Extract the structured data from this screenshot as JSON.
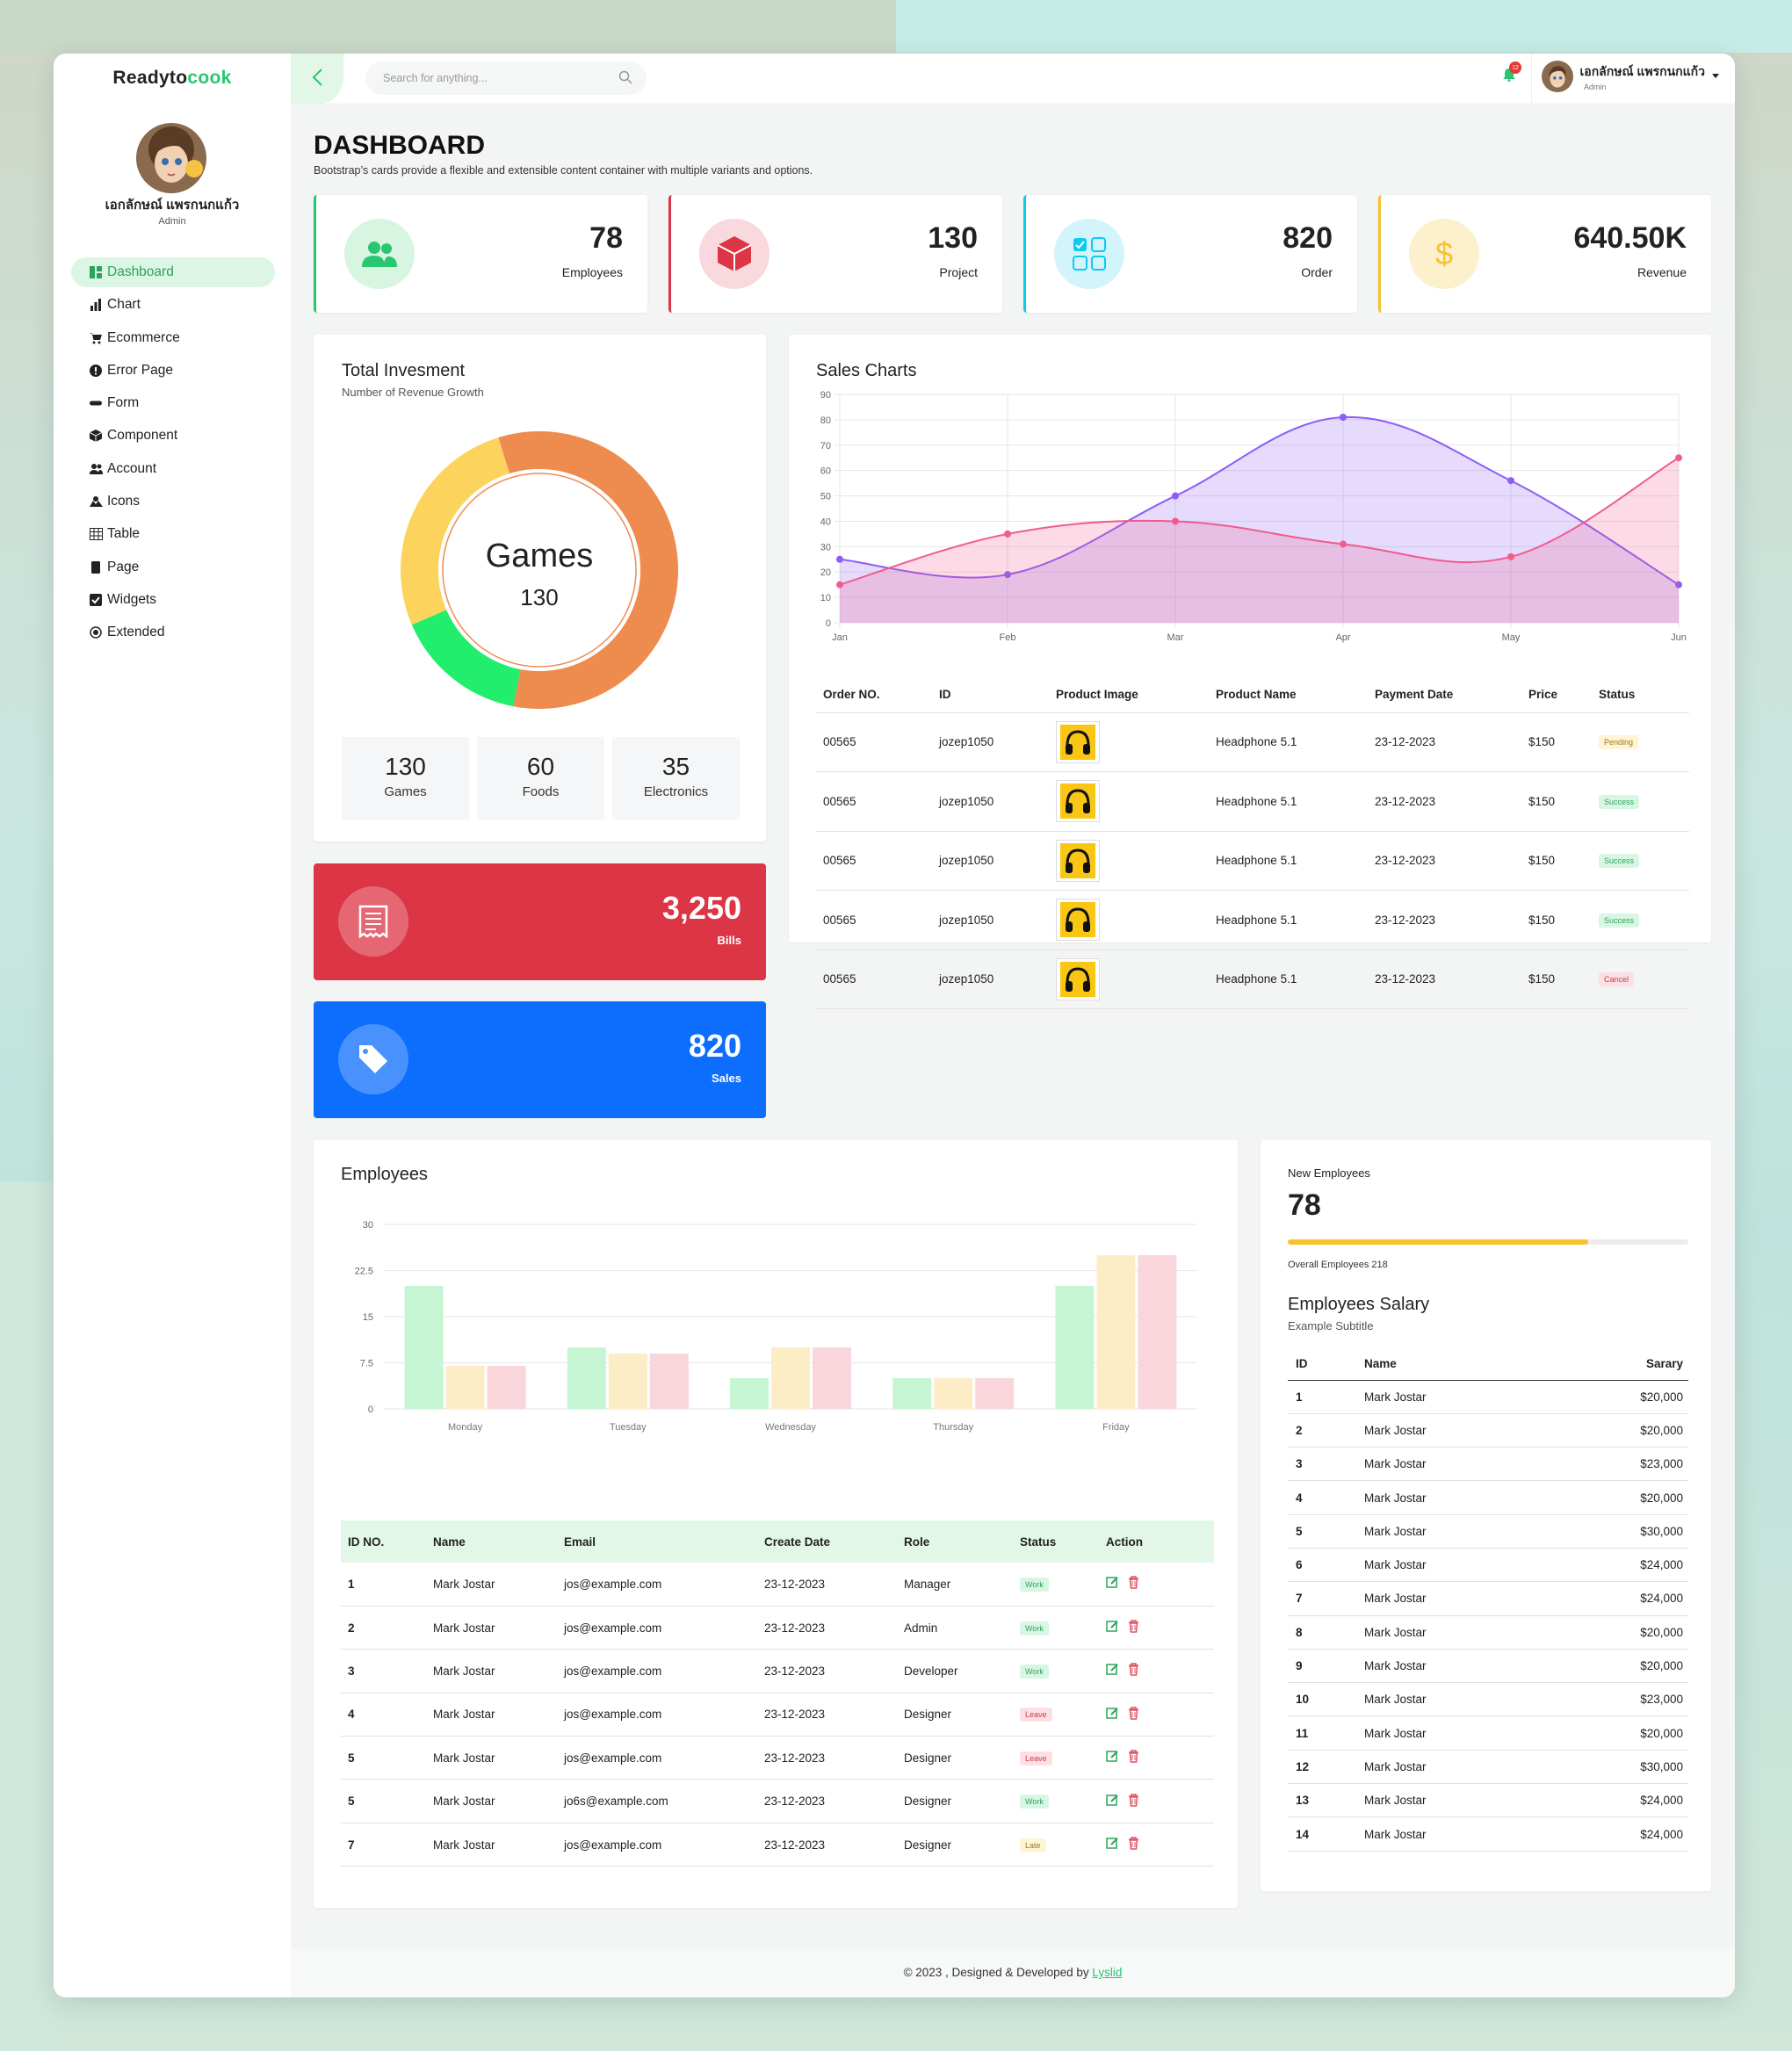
{
  "app": {
    "logo_main": "Readyto",
    "logo_accent": "cook"
  },
  "user": {
    "name": "เอกลักษณ์ แพรกนกแก้ว",
    "role": "Admin"
  },
  "sidebar": {
    "items": [
      {
        "label": "Dashboard",
        "icon": "dashboard-icon"
      },
      {
        "label": "Chart",
        "icon": "chart-icon"
      },
      {
        "label": "Ecommerce",
        "icon": "cart-icon"
      },
      {
        "label": "Error Page",
        "icon": "alert-icon"
      },
      {
        "label": "Form",
        "icon": "form-icon"
      },
      {
        "label": "Component",
        "icon": "box-icon"
      },
      {
        "label": "Account",
        "icon": "users-icon"
      },
      {
        "label": "Icons",
        "icon": "icons-icon"
      },
      {
        "label": "Table",
        "icon": "table-icon"
      },
      {
        "label": "Page",
        "icon": "page-icon"
      },
      {
        "label": "Widgets",
        "icon": "check-square-icon"
      },
      {
        "label": "Extended",
        "icon": "extended-icon"
      }
    ]
  },
  "topbar": {
    "search_placeholder": "Search for anything...",
    "notification_count": "12"
  },
  "header": {
    "title": "DASHBOARD",
    "subtitle": "Bootstrap’s cards provide a flexible and extensible content container with multiple variants and options."
  },
  "stats": [
    {
      "value": "78",
      "label": "Employees",
      "color": "#28c76f"
    },
    {
      "value": "130",
      "label": "Project",
      "color": "#dc3545"
    },
    {
      "value": "820",
      "label": "Order",
      "color": "#0dcaf0"
    },
    {
      "value": "640.50K",
      "label": "Revenue",
      "color": "#f7c22f"
    }
  ],
  "investment": {
    "title": "Total Invesment",
    "subtitle": "Number of Revenue Growth",
    "center_label": "Games",
    "center_value": "130",
    "mini": [
      {
        "value": "130",
        "label": "Games"
      },
      {
        "value": "60",
        "label": "Foods"
      },
      {
        "value": "35",
        "label": "Electronics"
      }
    ]
  },
  "bills": {
    "value": "3,250",
    "label": "Bills"
  },
  "sales": {
    "value": "820",
    "label": "Sales"
  },
  "sales_chart": {
    "title": "Sales Charts"
  },
  "orders": {
    "headers": [
      "Order NO.",
      "ID",
      "Product Image",
      "Product Name",
      "Payment Date",
      "Price",
      "Status"
    ],
    "rows": [
      {
        "order": "00565",
        "id": "jozep1050",
        "product": "Headphone 5.1",
        "date": "23-12-2023",
        "price": "$150",
        "status": "Pending"
      },
      {
        "order": "00565",
        "id": "jozep1050",
        "product": "Headphone 5.1",
        "date": "23-12-2023",
        "price": "$150",
        "status": "Success"
      },
      {
        "order": "00565",
        "id": "jozep1050",
        "product": "Headphone 5.1",
        "date": "23-12-2023",
        "price": "$150",
        "status": "Success"
      },
      {
        "order": "00565",
        "id": "jozep1050",
        "product": "Headphone 5.1",
        "date": "23-12-2023",
        "price": "$150",
        "status": "Success"
      },
      {
        "order": "00565",
        "id": "jozep1050",
        "product": "Headphone 5.1",
        "date": "23-12-2023",
        "price": "$150",
        "status": "Cancel"
      }
    ]
  },
  "employees_card": {
    "title": "Employees"
  },
  "employees_table": {
    "headers": [
      "ID NO.",
      "Name",
      "Email",
      "Create Date",
      "Role",
      "Status",
      "Action"
    ],
    "rows": [
      {
        "id": "1",
        "name": "Mark Jostar",
        "email": "jos@example.com",
        "date": "23-12-2023",
        "role": "Manager",
        "status": "Work"
      },
      {
        "id": "2",
        "name": "Mark Jostar",
        "email": "jos@example.com",
        "date": "23-12-2023",
        "role": "Admin",
        "status": "Work"
      },
      {
        "id": "3",
        "name": "Mark Jostar",
        "email": "jos@example.com",
        "date": "23-12-2023",
        "role": "Developer",
        "status": "Work"
      },
      {
        "id": "4",
        "name": "Mark Jostar",
        "email": "jos@example.com",
        "date": "23-12-2023",
        "role": "Designer",
        "status": "Leave"
      },
      {
        "id": "5",
        "name": "Mark Jostar",
        "email": "jos@example.com",
        "date": "23-12-2023",
        "role": "Designer",
        "status": "Leave"
      },
      {
        "id": "5",
        "name": "Mark Jostar",
        "email": "jo6s@example.com",
        "date": "23-12-2023",
        "role": "Designer",
        "status": "Work"
      },
      {
        "id": "7",
        "name": "Mark Jostar",
        "email": "jos@example.com",
        "date": "23-12-2023",
        "role": "Designer",
        "status": "Late"
      }
    ]
  },
  "new_employees": {
    "title": "New Employees",
    "value": "78",
    "progress_fraction": 0.75,
    "overall": "Overall Employees 218"
  },
  "salary": {
    "title": "Employees Salary",
    "subtitle": "Example Subtitle",
    "headers": [
      "ID",
      "Name",
      "Sarary"
    ],
    "rows": [
      {
        "id": "1",
        "name": "Mark Jostar",
        "salary": "$20,000"
      },
      {
        "id": "2",
        "name": "Mark Jostar",
        "salary": "$20,000"
      },
      {
        "id": "3",
        "name": "Mark Jostar",
        "salary": "$23,000"
      },
      {
        "id": "4",
        "name": "Mark Jostar",
        "salary": "$20,000"
      },
      {
        "id": "5",
        "name": "Mark Jostar",
        "salary": "$30,000"
      },
      {
        "id": "6",
        "name": "Mark Jostar",
        "salary": "$24,000"
      },
      {
        "id": "7",
        "name": "Mark Jostar",
        "salary": "$24,000"
      },
      {
        "id": "8",
        "name": "Mark Jostar",
        "salary": "$20,000"
      },
      {
        "id": "9",
        "name": "Mark Jostar",
        "salary": "$20,000"
      },
      {
        "id": "10",
        "name": "Mark Jostar",
        "salary": "$23,000"
      },
      {
        "id": "11",
        "name": "Mark Jostar",
        "salary": "$20,000"
      },
      {
        "id": "12",
        "name": "Mark Jostar",
        "salary": "$30,000"
      },
      {
        "id": "13",
        "name": "Mark Jostar",
        "salary": "$24,000"
      },
      {
        "id": "14",
        "name": "Mark Jostar",
        "salary": "$24,000"
      }
    ]
  },
  "footer": {
    "text": "© 2023 , Designed & Developed by ",
    "link": "Lyslid"
  },
  "chart_data": [
    {
      "type": "pie",
      "categories": [
        "Games",
        "Foods",
        "Electronics"
      ],
      "values": [
        130,
        60,
        35
      ],
      "colors": [
        "#ee8b4f",
        "#fcd45d",
        "#23ed6c"
      ]
    },
    {
      "type": "area",
      "title": "Sales Charts",
      "categories": [
        "Jan",
        "Feb",
        "Mar",
        "Apr",
        "May",
        "Jun"
      ],
      "ylim": [
        0,
        90
      ],
      "yticks": [
        0,
        10,
        20,
        30,
        40,
        50,
        60,
        70,
        80,
        90
      ],
      "grid": true,
      "series": [
        {
          "values": [
            25,
            19,
            50,
            81,
            56,
            15
          ],
          "color": "#8e5cf7"
        },
        {
          "values": [
            15,
            35,
            40,
            31,
            26,
            65
          ],
          "color": "#f05c8c"
        }
      ]
    },
    {
      "type": "bar",
      "categories": [
        "Monday",
        "Tuesday",
        "Wednesday",
        "Thursday",
        "Friday"
      ],
      "ylim": [
        0,
        30
      ],
      "yticks": [
        "0",
        "7.5",
        "15",
        "22.5",
        "30"
      ],
      "grid": true,
      "series": [
        {
          "values": [
            20,
            10,
            5,
            5,
            20
          ],
          "color": "#c6f5d4"
        },
        {
          "values": [
            7,
            9,
            10,
            5,
            25
          ],
          "color": "#fdedc6"
        },
        {
          "values": [
            7,
            9,
            10,
            5,
            25
          ],
          "color": "#f8d6dc"
        }
      ]
    }
  ]
}
